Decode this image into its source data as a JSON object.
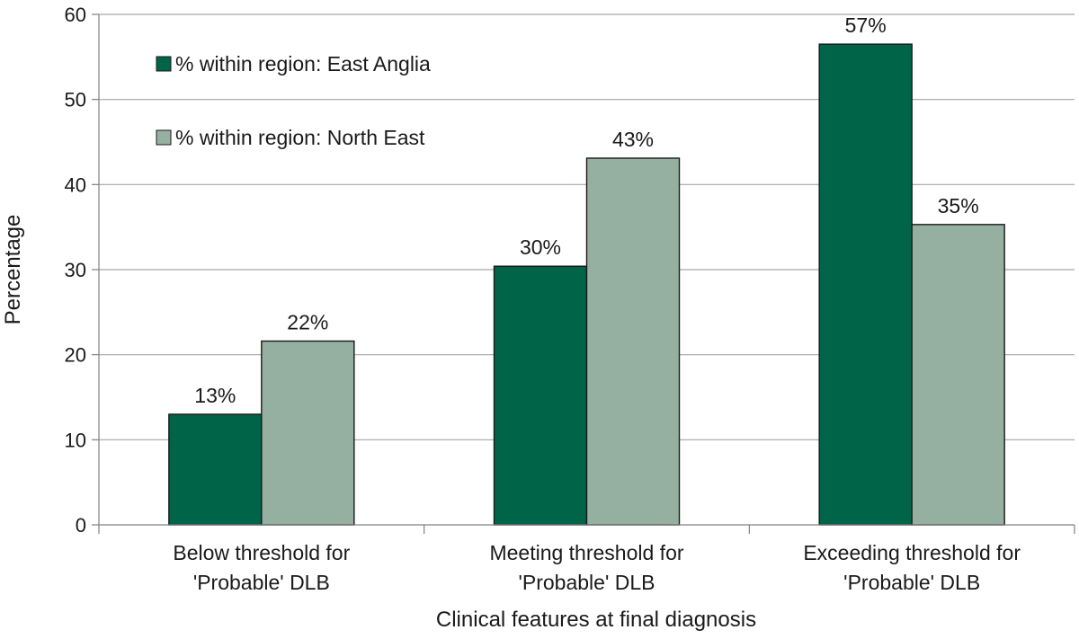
{
  "chart_data": {
    "type": "bar",
    "categories": [
      [
        "Below threshold for",
        "'Probable' DLB"
      ],
      [
        "Meeting threshold for",
        "'Probable' DLB"
      ],
      [
        "Exceeding threshold for",
        "'Probable' DLB"
      ]
    ],
    "series": [
      {
        "name": "% within region: East Anglia",
        "color": "#006548",
        "values": [
          13,
          30.4,
          56.5
        ],
        "labels": [
          "13%",
          "30%",
          "57%"
        ]
      },
      {
        "name": "% within region: North East",
        "color": "#95b0a1",
        "values": [
          21.6,
          43.1,
          35.3
        ],
        "labels": [
          "22%",
          "43%",
          "35%"
        ]
      }
    ],
    "xlabel": "Clinical features at final diagnosis",
    "ylabel": "Percentage",
    "ylim": [
      0,
      60
    ],
    "yticks": [
      0,
      10,
      20,
      30,
      40,
      50,
      60
    ],
    "grid": "horizontal",
    "legend_position": "top-left"
  }
}
